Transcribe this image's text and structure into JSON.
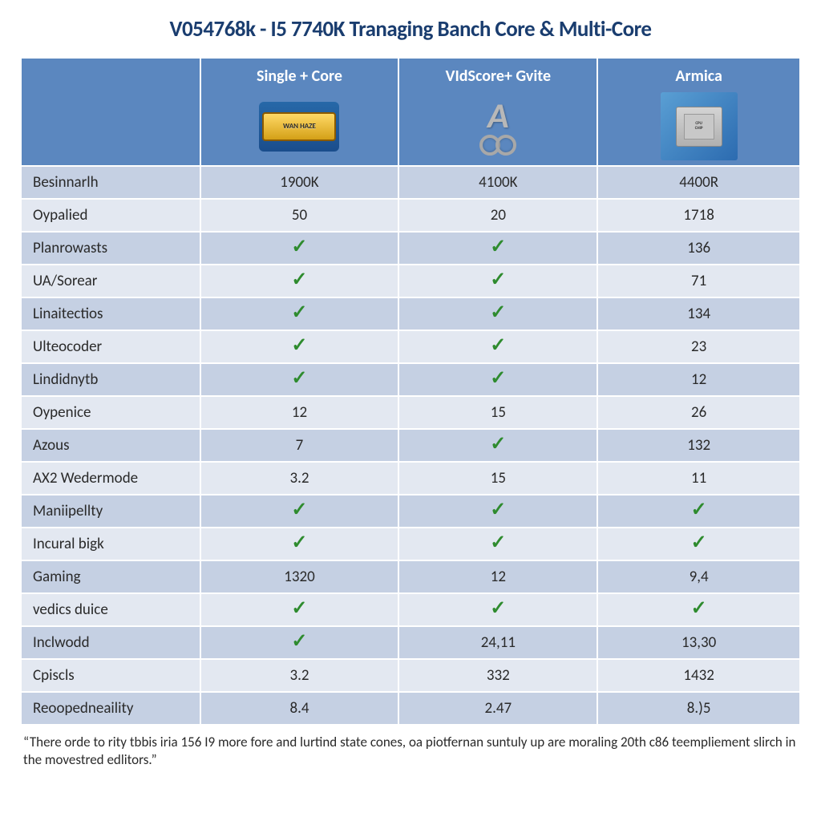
{
  "title": "V054768k - I5 7740K Tranaging Banch Core & Multi-Core",
  "columns": [
    {
      "label": "",
      "icon": "none"
    },
    {
      "label": "Single + Core",
      "icon": "badge",
      "badge_text": "WAN HAZE"
    },
    {
      "label": "VIdScore+ Gvite",
      "icon": "handcuffs"
    },
    {
      "label": "Armica",
      "icon": "chip"
    }
  ],
  "rows": [
    {
      "label": "Besinnarlh",
      "cells": [
        "1900K",
        "4100K",
        "4400R"
      ]
    },
    {
      "label": "Oypalied",
      "cells": [
        "50",
        "20",
        "1718"
      ]
    },
    {
      "label": "Planrowasts",
      "cells": [
        "check",
        "check",
        "136"
      ]
    },
    {
      "label": "UA/Sorear",
      "cells": [
        "check",
        "check",
        "71"
      ]
    },
    {
      "label": "Linaitectios",
      "cells": [
        "check",
        "check",
        "134"
      ]
    },
    {
      "label": "Ulteocoder",
      "cells": [
        "check",
        "check",
        "23"
      ]
    },
    {
      "label": "Lindidnytb",
      "cells": [
        "check",
        "check",
        "12"
      ]
    },
    {
      "label": "Oypenice",
      "cells": [
        "12",
        "15",
        "26"
      ]
    },
    {
      "label": "Azous",
      "cells": [
        "7",
        "check",
        "132"
      ]
    },
    {
      "label": "AX2 Wedermode",
      "cells": [
        "3.2",
        "15",
        "11"
      ]
    },
    {
      "label": "Maniipellty",
      "cells": [
        "check",
        "check",
        "check"
      ]
    },
    {
      "label": "Incural bigk",
      "cells": [
        "check",
        "check",
        "check"
      ]
    },
    {
      "label": "Gaming",
      "cells": [
        "1320",
        "12",
        "9,4"
      ]
    },
    {
      "label": "vedics duice",
      "cells": [
        "check",
        "check",
        "check"
      ]
    },
    {
      "label": "Inclwodd",
      "cells": [
        "check",
        "24,11",
        "13,30"
      ]
    },
    {
      "label": "Cpiscls",
      "cells": [
        "3.2",
        "332",
        "1432"
      ]
    },
    {
      "label": "Reoopedneaility",
      "cells": [
        "8.4",
        "2.47",
        "8.)5"
      ]
    }
  ],
  "caption": "“There orde to rity tbbis iria 156 I9 more fore and lurtind state cones, oa piotfernan suntuly up are moraling 20th c86 teempliement slirch in the movestred edlitors.”",
  "colors": {
    "header_bg": "#5b87bf",
    "header_text": "#ffffff",
    "row_odd_bg": "#c5d0e3",
    "row_even_bg": "#e3e8f1",
    "title_color": "#1a3d6f",
    "body_text": "#2a2a2a",
    "check_color": "#2e8b2e",
    "border_color": "#ffffff"
  },
  "fonts": {
    "title_size": 27,
    "header_size": 20,
    "cell_size": 19,
    "caption_size": 17,
    "family": "Calibri, Arial, sans-serif"
  },
  "layout": {
    "col_widths_pct": [
      23,
      25.5,
      25.5,
      26
    ]
  }
}
